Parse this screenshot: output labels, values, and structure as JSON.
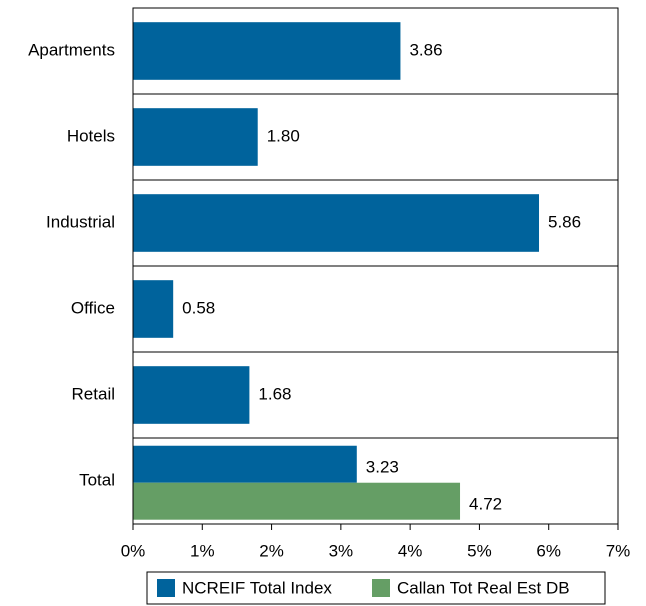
{
  "chart_data": {
    "type": "hbar",
    "categories": [
      "Apartments",
      "Hotels",
      "Industrial",
      "Office",
      "Retail",
      "Total"
    ],
    "series": [
      {
        "name": "NCREIF Total Index",
        "color": "#00639c",
        "values": [
          3.86,
          1.8,
          5.86,
          0.58,
          1.68,
          3.23
        ],
        "value_labels": [
          "3.86",
          "1.80",
          "5.86",
          "0.58",
          "1.68",
          "3.23"
        ]
      },
      {
        "name": "Callan Tot Real Est DB",
        "color": "#659e65",
        "values": [
          null,
          null,
          null,
          null,
          null,
          4.72
        ],
        "value_labels": [
          null,
          null,
          null,
          null,
          null,
          "4.72"
        ]
      }
    ],
    "xlim": [
      0,
      7
    ],
    "xticks": [
      {
        "value": 0,
        "label": "0%"
      },
      {
        "value": 1,
        "label": "1%"
      },
      {
        "value": 2,
        "label": "2%"
      },
      {
        "value": 3,
        "label": "3%"
      },
      {
        "value": 4,
        "label": "4%"
      },
      {
        "value": 5,
        "label": "5%"
      },
      {
        "value": 6,
        "label": "6%"
      },
      {
        "value": 7,
        "label": "7%"
      }
    ],
    "legend": "bottom"
  }
}
